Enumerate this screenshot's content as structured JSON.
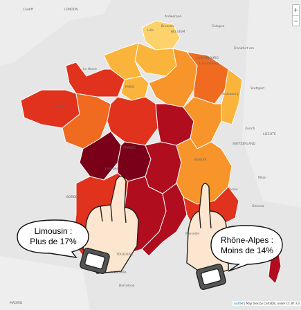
{
  "places": {
    "cardiff": "Cardiff",
    "london": "LONDON",
    "antwerp": "Antwerpen",
    "brussels": "Brussels",
    "lille": "Lille",
    "cologne": "Cologne",
    "belgium": "BELGIUM",
    "frankfurt": "Frankfurt am",
    "luxembourg_country": "LUXEMBOURG",
    "luxembourg_city": "Luxembourg",
    "le_havre": "Le Havre",
    "paris": "PARIS",
    "strasbourg": "Strasbourg",
    "stuttgart": "Stuttgart",
    "rennes": "Rennes",
    "france": "FRANCE",
    "zurich": "Zurich",
    "liechtenstein": "LIECHTE",
    "switzerland": "SWITZERLAND",
    "geneva": "GENEVA",
    "limoges": "Limoges",
    "turin": "Torino",
    "milan": "Milan",
    "genoa": "Genova",
    "bordeaux": "BORDEAUX",
    "marseille": "Marseille",
    "toulouse": "TOULOUSE",
    "andorra": "ANDORRA",
    "barcelona": "Barcelona",
    "madrid": "MADRID"
  },
  "annotations": {
    "limousin": {
      "line1": "Limousin :",
      "line2": "Plus de 17%"
    },
    "rhone_alpes": {
      "line1": "Rhône-Alpes :",
      "line2": "Moins de 14%"
    }
  },
  "zoom": {
    "in": "+",
    "out": "−"
  },
  "attribution": {
    "leaflet": "Leaflet",
    "rest": "| Map tiles by CartoDB, under CC BY 3.0"
  },
  "legend_colors": {
    "highest": "#7a0019",
    "very_high": "#b00d1f",
    "high": "#e0321c",
    "mid_high": "#f06a1f",
    "mid": "#f7952a",
    "low": "#fbb43b",
    "lowest": "#fdd26a"
  }
}
